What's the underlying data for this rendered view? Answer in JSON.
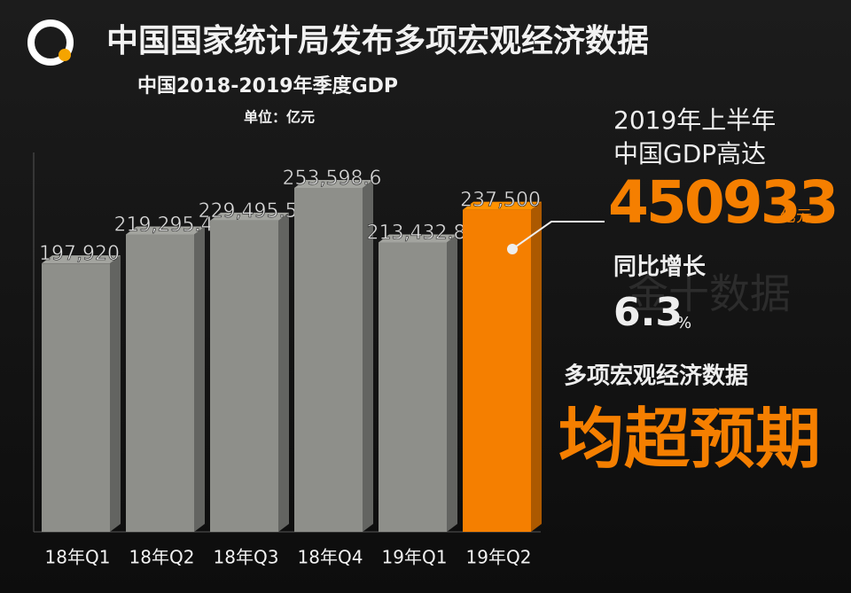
{
  "chart_data": {
    "type": "bar3d",
    "title": "中国国家统计局发布多项宏观经济数据",
    "subtitle": "中国2018-2019年季度GDP",
    "unit": "单位：亿元",
    "categories": [
      "18年Q1",
      "18年Q2",
      "18年Q3",
      "18年Q4",
      "19年Q1",
      "19年Q2"
    ],
    "values": [
      197920,
      219295.4,
      229495.5,
      253598.6,
      213432.8,
      237500
    ],
    "value_labels": [
      "197,920",
      "219,295.4",
      "229,495.5",
      "253,598.6",
      "213,432.8",
      "237,500"
    ],
    "colors": [
      "#8e8f8a",
      "#8e8f8a",
      "#8e8f8a",
      "#8e8f8a",
      "#8e8f8a",
      "#f57f00"
    ]
  },
  "callout": {
    "line1": "2019年上半年",
    "line2": "中国GDP高达",
    "total": 450933,
    "total_unit": "亿元",
    "growth_label": "同比增长",
    "growth": 6.3,
    "growth_unit": "%",
    "note": "多项宏观经济数据",
    "headline": "均超预期"
  },
  "watermark": "金十数据"
}
